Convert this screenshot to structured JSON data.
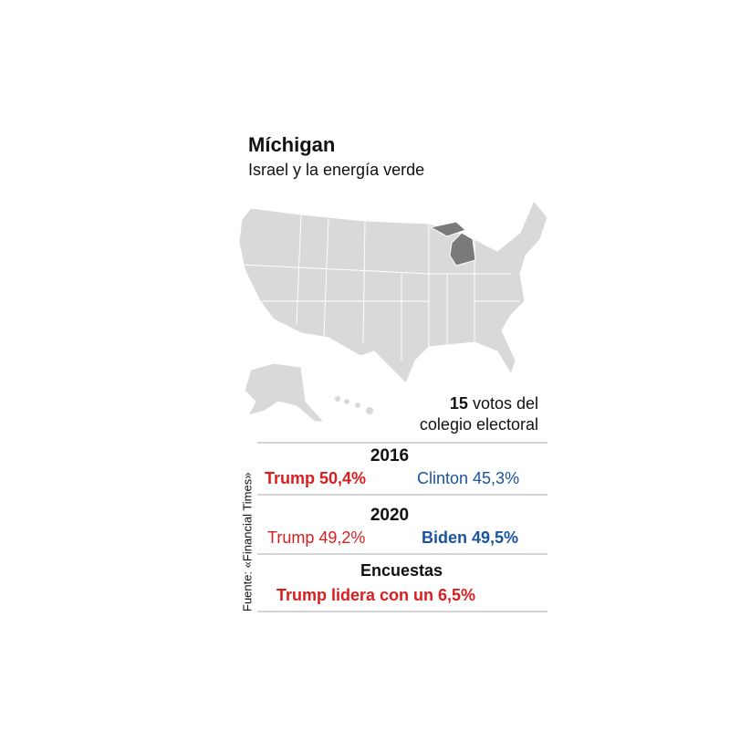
{
  "header": {
    "title": "Míchigan",
    "subtitle": "Israel y la energía verde"
  },
  "electoral_votes": {
    "number": "15",
    "line1": "votos del",
    "line2": "colegio electoral"
  },
  "results": [
    {
      "year": "2016",
      "republican": "Trump 50,4%",
      "democrat": "Clinton 45,3%"
    },
    {
      "year": "2020",
      "republican": "Trump 49,2%",
      "democrat": "Biden 49,5%"
    }
  ],
  "polls": {
    "title": "Encuestas",
    "text": "Trump lidera con un 6,5%"
  },
  "source": "Fuente: «Financial Times»"
}
